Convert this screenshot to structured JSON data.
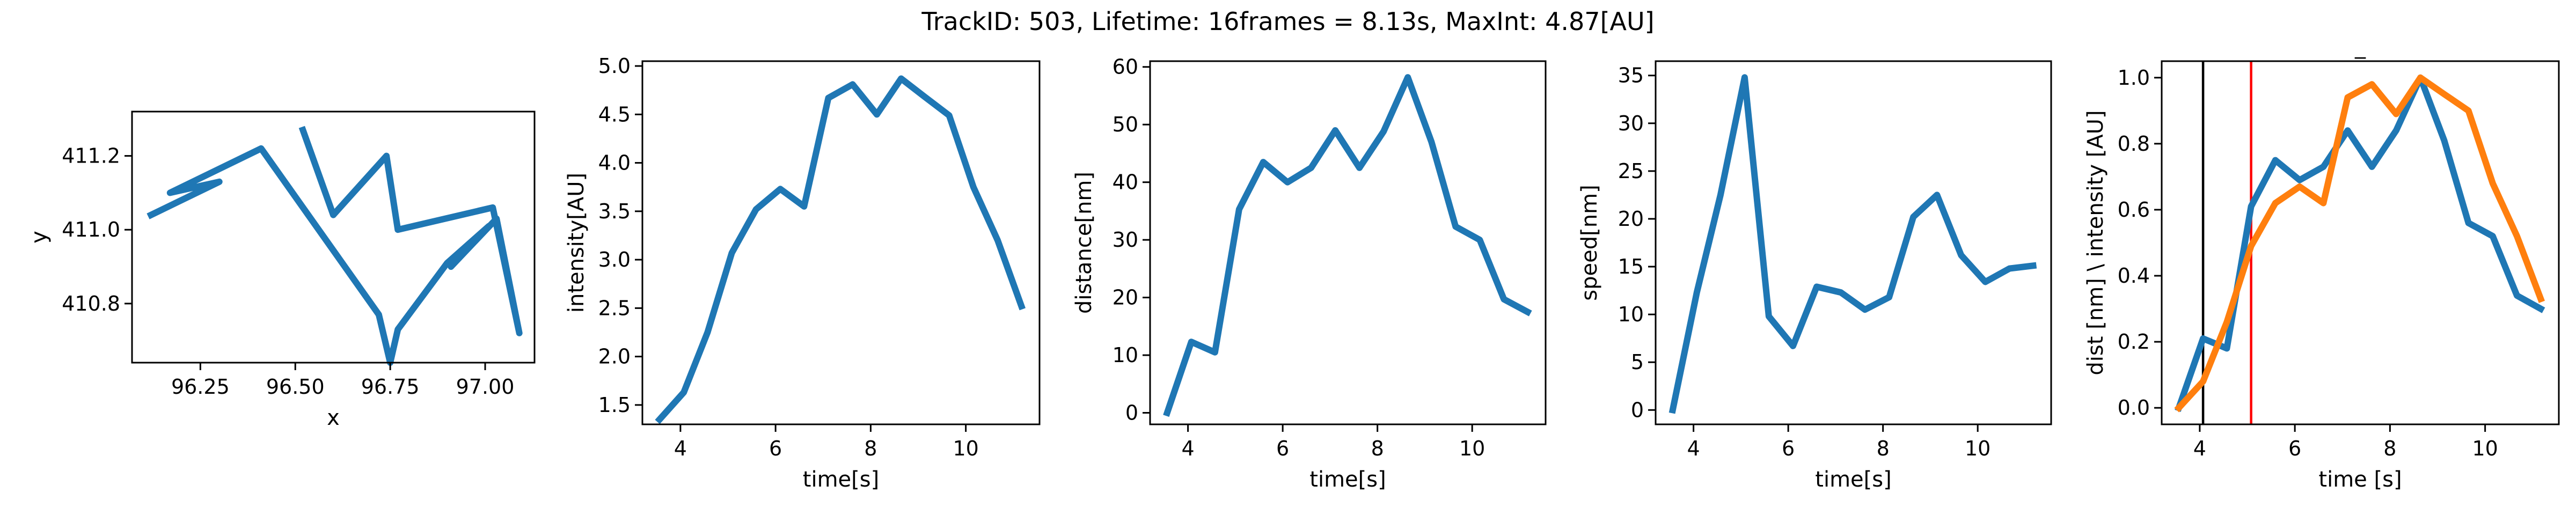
{
  "figure": {
    "suptitle": "TrackID: 503, Lifetime: 16frames = 8.13s, MaxInt: 4.87[AU]"
  },
  "chart_data": [
    {
      "type": "line",
      "title": "",
      "xlabel": "x",
      "ylabel": "y",
      "xlim": [
        96.07,
        97.13
      ],
      "ylim": [
        410.64,
        411.32
      ],
      "xticks": [
        96.25,
        96.5,
        96.75,
        97.0
      ],
      "xtick_labels": [
        "96.25",
        "96.50",
        "96.75",
        "97.00"
      ],
      "yticks": [
        410.8,
        411.0,
        411.2
      ],
      "ytick_labels": [
        "410.8",
        "411.0",
        "411.2"
      ],
      "series": [
        {
          "color": "#1f77b4",
          "x": [
            96.12,
            96.3,
            96.17,
            96.41,
            96.72,
            96.75,
            96.77,
            96.9,
            97.01,
            96.91,
            97.03,
            97.09,
            97.02,
            96.77,
            96.74,
            96.6,
            96.52
          ],
          "y": [
            411.04,
            411.13,
            411.1,
            411.22,
            410.77,
            410.64,
            410.73,
            410.91,
            411.01,
            410.9,
            411.03,
            410.72,
            411.06,
            411.0,
            411.2,
            411.04,
            411.27
          ]
        }
      ]
    },
    {
      "type": "line",
      "title": "",
      "xlabel": "time[s]",
      "ylabel": "intensity[AU]",
      "xlim": [
        3.2,
        11.55
      ],
      "ylim": [
        1.3,
        5.05
      ],
      "xticks": [
        4,
        6,
        8,
        10
      ],
      "xtick_labels": [
        "4",
        "6",
        "8",
        "10"
      ],
      "yticks": [
        1.5,
        2.0,
        2.5,
        3.0,
        3.5,
        4.0,
        4.5,
        5.0
      ],
      "ytick_labels": [
        "1.5",
        "2.0",
        "2.5",
        "3.0",
        "3.5",
        "4.0",
        "4.5",
        "5.0"
      ],
      "series": [
        {
          "color": "#1f77b4",
          "x": [
            3.56,
            4.07,
            4.57,
            5.08,
            5.59,
            6.1,
            6.6,
            7.11,
            7.62,
            8.13,
            8.64,
            9.14,
            9.65,
            10.16,
            10.67,
            11.17
          ],
          "y": [
            1.35,
            1.63,
            2.25,
            3.07,
            3.52,
            3.73,
            3.55,
            4.67,
            4.81,
            4.5,
            4.87,
            4.68,
            4.49,
            3.75,
            3.2,
            2.52
          ]
        }
      ]
    },
    {
      "type": "line",
      "title": "",
      "xlabel": "time[s]",
      "ylabel": "distance[nm]",
      "xlim": [
        3.2,
        11.55
      ],
      "ylim": [
        -2,
        61
      ],
      "xticks": [
        4,
        6,
        8,
        10
      ],
      "xtick_labels": [
        "4",
        "6",
        "8",
        "10"
      ],
      "yticks": [
        0,
        10,
        20,
        30,
        40,
        50,
        60
      ],
      "ytick_labels": [
        "0",
        "10",
        "20",
        "30",
        "40",
        "50",
        "60"
      ],
      "series": [
        {
          "color": "#1f77b4",
          "x": [
            3.56,
            4.07,
            4.57,
            5.08,
            5.59,
            6.1,
            6.6,
            7.11,
            7.62,
            8.13,
            8.64,
            9.14,
            9.65,
            10.16,
            10.67,
            11.17
          ],
          "y": [
            0,
            12.3,
            10.5,
            35.3,
            43.5,
            40,
            42.5,
            49,
            42.5,
            48.8,
            58.2,
            47,
            32.3,
            30,
            19.7,
            17.5
          ]
        }
      ]
    },
    {
      "type": "line",
      "title": "",
      "xlabel": "time[s]",
      "ylabel": "speed[nm]",
      "xlim": [
        3.2,
        11.55
      ],
      "ylim": [
        -1.5,
        36.5
      ],
      "xticks": [
        4,
        6,
        8,
        10
      ],
      "xtick_labels": [
        "4",
        "6",
        "8",
        "10"
      ],
      "yticks": [
        0,
        5,
        10,
        15,
        20,
        25,
        30,
        35
      ],
      "ytick_labels": [
        "0",
        "5",
        "10",
        "15",
        "20",
        "25",
        "30",
        "35"
      ],
      "series": [
        {
          "color": "#1f77b4",
          "x": [
            3.56,
            4.07,
            4.57,
            5.08,
            5.59,
            6.1,
            6.6,
            7.11,
            7.62,
            8.13,
            8.64,
            9.14,
            9.65,
            10.16,
            10.67,
            11.17
          ],
          "y": [
            0,
            12.3,
            22.5,
            34.8,
            9.8,
            6.7,
            12.9,
            12.3,
            10.5,
            11.8,
            20.2,
            22.5,
            16.2,
            13.4,
            14.8,
            15.1
          ]
        }
      ]
    },
    {
      "type": "line",
      "title": "_",
      "xlabel": "time [s]",
      "ylabel": "dist [nm] \\ intensity [AU]",
      "xlim": [
        3.2,
        11.55
      ],
      "ylim": [
        -0.05,
        1.05
      ],
      "xticks": [
        4,
        6,
        8,
        10
      ],
      "xtick_labels": [
        "4",
        "6",
        "8",
        "10"
      ],
      "yticks": [
        0.0,
        0.2,
        0.4,
        0.6,
        0.8,
        1.0
      ],
      "ytick_labels": [
        "0.0",
        "0.2",
        "0.4",
        "0.6",
        "0.8",
        "1.0"
      ],
      "vlines": [
        {
          "x": 4.07,
          "color": "#000000"
        },
        {
          "x": 5.08,
          "color": "#ff0000"
        }
      ],
      "series": [
        {
          "color": "#1f77b4",
          "x": [
            3.56,
            4.07,
            4.57,
            5.08,
            5.59,
            6.1,
            6.6,
            7.11,
            7.62,
            8.13,
            8.64,
            9.14,
            9.65,
            10.16,
            10.67,
            11.17
          ],
          "y": [
            0,
            0.21,
            0.18,
            0.61,
            0.75,
            0.69,
            0.73,
            0.84,
            0.73,
            0.84,
            1.0,
            0.81,
            0.56,
            0.52,
            0.34,
            0.3
          ]
        },
        {
          "color": "#ff7f0e",
          "x": [
            3.56,
            4.07,
            4.57,
            5.08,
            5.59,
            6.1,
            6.6,
            7.11,
            7.62,
            8.13,
            8.64,
            9.14,
            9.65,
            10.16,
            10.67,
            11.17
          ],
          "y": [
            0,
            0.08,
            0.26,
            0.49,
            0.62,
            0.67,
            0.62,
            0.94,
            0.98,
            0.89,
            1.0,
            0.95,
            0.9,
            0.68,
            0.52,
            0.33
          ]
        }
      ]
    }
  ]
}
